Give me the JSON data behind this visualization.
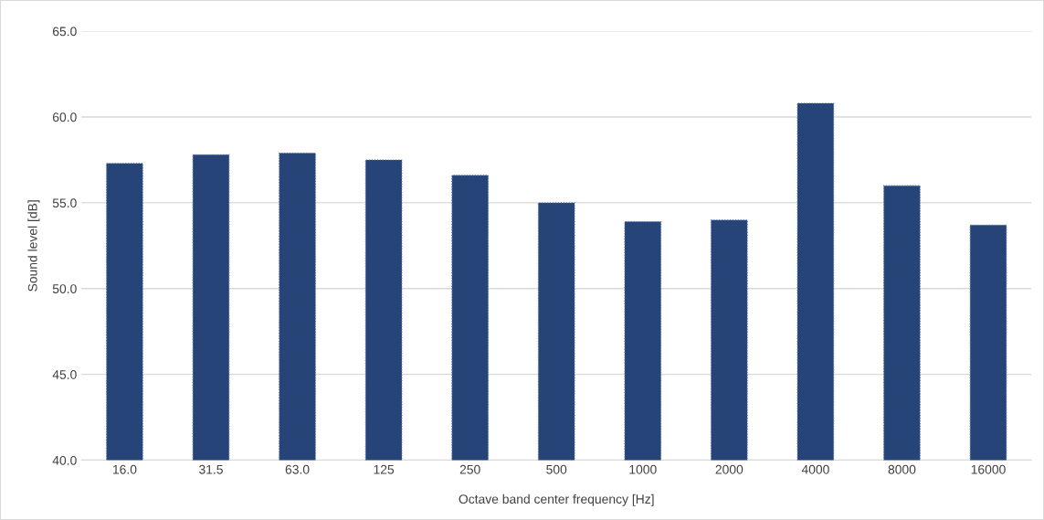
{
  "chart_data": {
    "type": "bar",
    "xlabel": "Octave band center frequency [Hz]",
    "ylabel": "Sound level [dB]",
    "categories": [
      "16.0",
      "31.5",
      "63.0",
      "125",
      "250",
      "500",
      "1000",
      "2000",
      "4000",
      "8000",
      "16000"
    ],
    "values": [
      57.3,
      57.8,
      57.9,
      57.5,
      56.6,
      55.0,
      53.9,
      54.0,
      60.8,
      56.0,
      53.7
    ],
    "color": "#264478",
    "ylim": [
      40,
      65
    ],
    "yticks": [
      {
        "value": 40,
        "label": "40.0"
      },
      {
        "value": 45,
        "label": "45.0"
      },
      {
        "value": 50,
        "label": "50.0"
      },
      {
        "value": 55,
        "label": "55.0"
      },
      {
        "value": 60,
        "label": "60.0"
      },
      {
        "value": 65,
        "label": "65.0"
      }
    ],
    "grid": "y"
  }
}
